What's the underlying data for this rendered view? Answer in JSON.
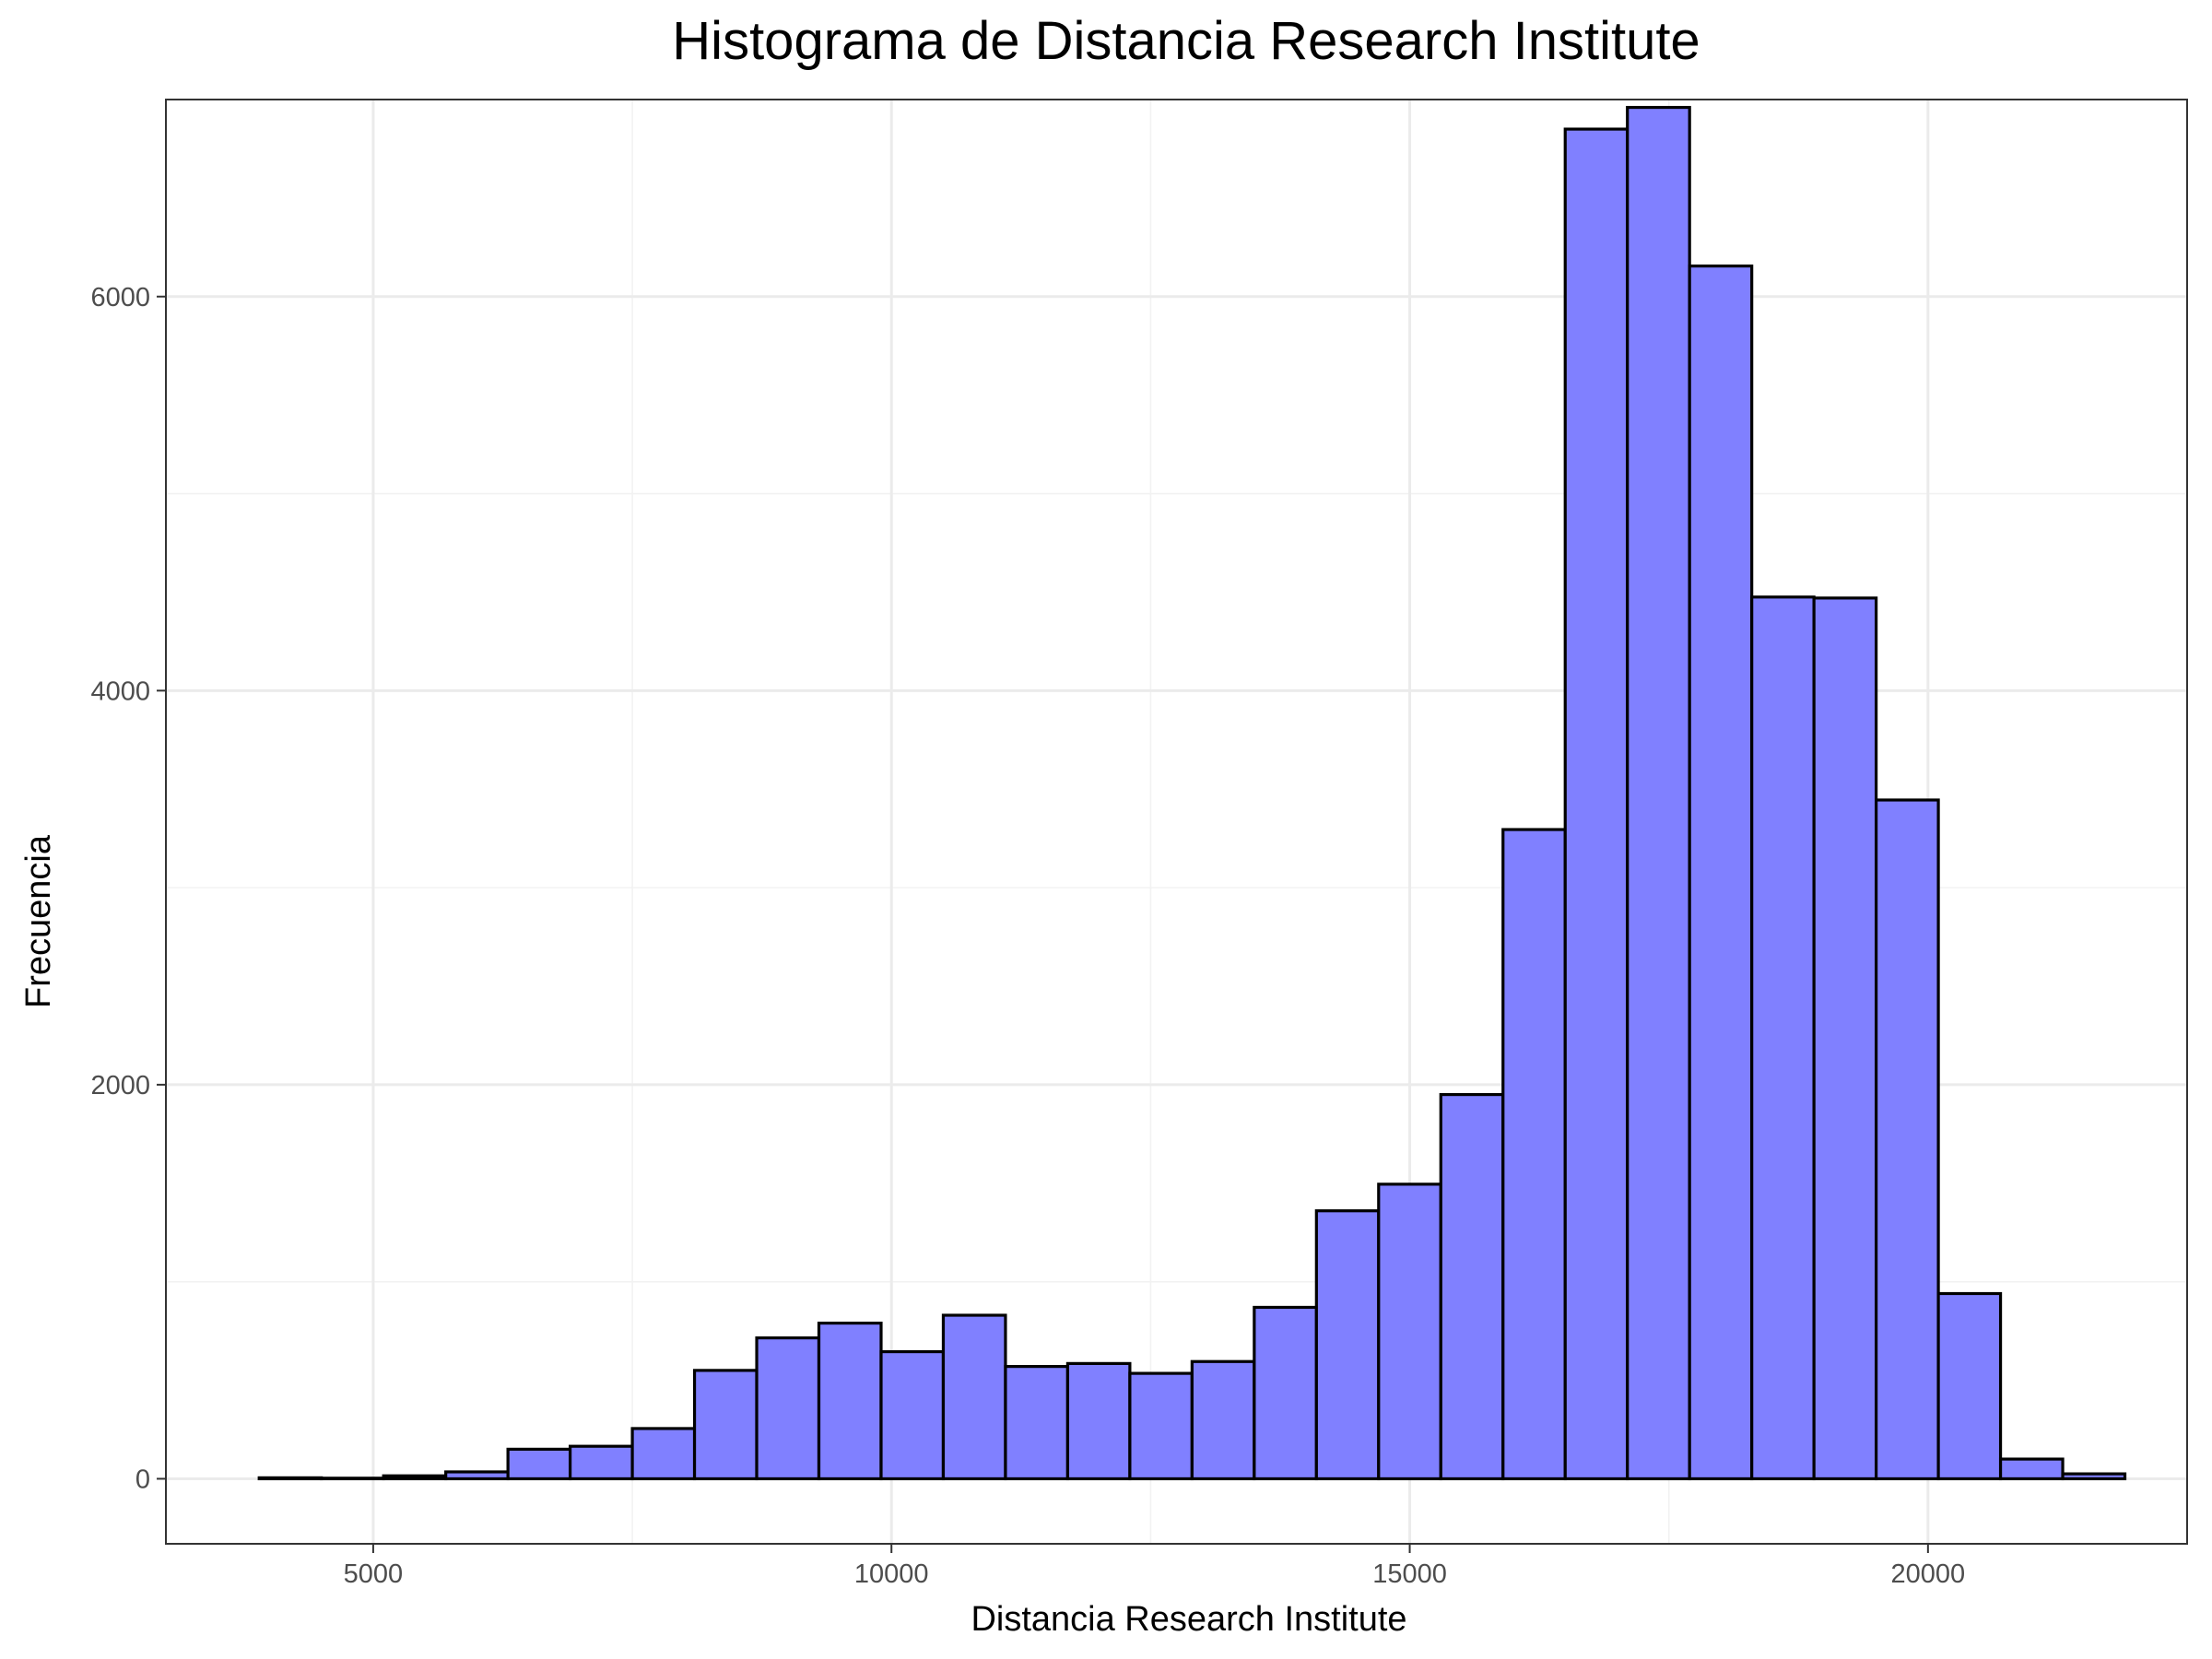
{
  "chart_data": {
    "type": "bar",
    "subtype": "histogram",
    "title": "Histograma de Distancia Research Institute",
    "xlabel": "Distancia Research Institute",
    "ylabel": "Frecuencia",
    "xlim": [
      3000,
      22500
    ],
    "ylim": [
      -330,
      7000
    ],
    "x_ticks": [
      5000,
      10000,
      15000,
      20000
    ],
    "y_ticks": [
      0,
      2000,
      4000,
      6000
    ],
    "x_tick_labels": [
      "5000",
      "10000",
      "15000",
      "20000"
    ],
    "y_tick_labels": [
      "0",
      "2000",
      "4000",
      "6000"
    ],
    "bin_width": 600,
    "bins_start": [
      3900,
      4500,
      5100,
      5700,
      6300,
      6900,
      7500,
      8100,
      8700,
      9300,
      9900,
      10500,
      11100,
      11700,
      12300,
      12900,
      13500,
      14100,
      14700,
      15300,
      15900,
      16500,
      17100,
      17700,
      18300,
      18900,
      19500,
      20100,
      20700,
      21300
    ],
    "counts": [
      5,
      3,
      15,
      35,
      150,
      165,
      255,
      550,
      715,
      790,
      645,
      830,
      570,
      585,
      535,
      595,
      870,
      1360,
      1495,
      1950,
      3295,
      6850,
      6960,
      6155,
      4475,
      4470,
      3445,
      940,
      100,
      25
    ],
    "fill_color": "#8080ff",
    "border_color": "#000000",
    "grid": true,
    "legend": "none"
  }
}
